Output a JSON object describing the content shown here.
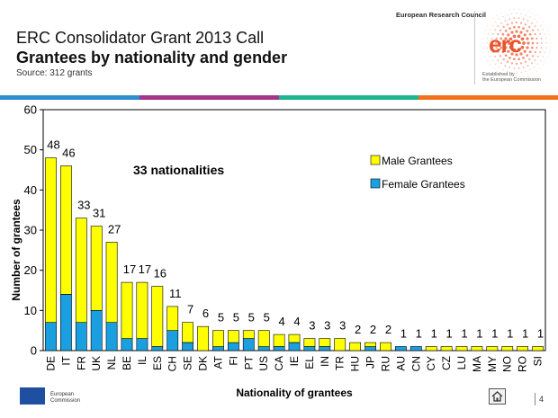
{
  "header": {
    "org": "European Research Council",
    "title_line1": "ERC Consolidator Grant 2013 Call",
    "title_line2": "Grantees by nationality and gender",
    "source": "Source: 312 grants"
  },
  "logo": {
    "text": "erc",
    "sub_line1": "Established by",
    "sub_line2": "the European Commission",
    "accent": "#e8542c"
  },
  "stripe_colors": [
    "#2f8fce",
    "#a3358b",
    "#1eb58f",
    "#f2711c"
  ],
  "chart_data": {
    "type": "bar",
    "stacked": true,
    "categories": [
      "DE",
      "IT",
      "FR",
      "UK",
      "NL",
      "BE",
      "IL",
      "ES",
      "CH",
      "SE",
      "DK",
      "AT",
      "FI",
      "PT",
      "US",
      "CA",
      "IE",
      "EL",
      "IN",
      "TR",
      "HU",
      "JP",
      "RU",
      "AU",
      "CN",
      "CY",
      "CZ",
      "LU",
      "MA",
      "MY",
      "NO",
      "RO",
      "SI"
    ],
    "series": [
      {
        "name": "Female Grantees",
        "color": "#1aa0e0",
        "values": [
          7,
          14,
          7,
          10,
          7,
          3,
          3,
          1,
          5,
          2,
          0,
          1,
          2,
          3,
          1,
          1,
          2,
          1,
          1,
          0,
          0,
          1,
          0,
          1,
          1,
          0,
          0,
          0,
          0,
          0,
          0,
          0,
          0
        ]
      },
      {
        "name": "Male Grantees",
        "color": "#ffff00",
        "values": [
          41,
          32,
          26,
          21,
          20,
          14,
          14,
          15,
          6,
          5,
          6,
          4,
          3,
          2,
          4,
          3,
          2,
          2,
          2,
          3,
          2,
          1,
          2,
          0,
          0,
          1,
          1,
          1,
          1,
          1,
          1,
          1,
          1
        ]
      }
    ],
    "totals": [
      48,
      46,
      33,
      31,
      27,
      17,
      17,
      16,
      11,
      7,
      6,
      5,
      5,
      5,
      5,
      4,
      4,
      3,
      3,
      3,
      2,
      2,
      2,
      1,
      1,
      1,
      1,
      1,
      1,
      1,
      1,
      1,
      1
    ],
    "ylim": [
      0,
      60
    ],
    "yticks": [
      0,
      10,
      20,
      30,
      40,
      50,
      60
    ],
    "xlabel": "Nationality of grantees",
    "ylabel": "Number of grantees",
    "annotation": "33 nationalities",
    "legend": [
      "Male Grantees",
      "Female Grantees"
    ],
    "legend_position": "top-right",
    "grid": false
  },
  "footer": {
    "eu_line1": "European",
    "eu_line2": "Commission",
    "page_number": "4"
  }
}
